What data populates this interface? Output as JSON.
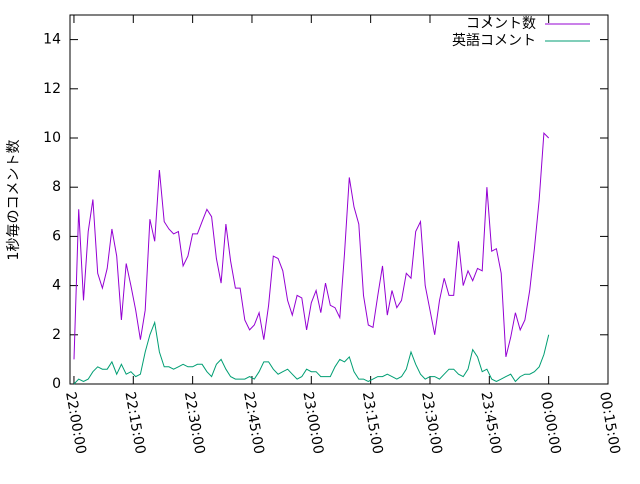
{
  "chart_data": {
    "type": "line",
    "y_label": "1秒毎のコメント数",
    "legend": "top-right",
    "x": [
      0,
      1.2,
      2.4,
      3.6,
      4.8,
      6,
      7.2,
      8.4,
      9.6,
      10.8,
      12,
      13.2,
      14.4,
      15.6,
      16.8,
      18,
      19.2,
      20.4,
      21.6,
      22.8,
      24,
      25.2,
      26.4,
      27.6,
      28.8,
      30,
      31.2,
      32.4,
      33.6,
      34.8,
      36,
      37.2,
      38.4,
      39.6,
      40.8,
      42,
      43.2,
      44.4,
      45.6,
      46.8,
      48,
      49.2,
      50.4,
      51.6,
      52.8,
      54,
      55.2,
      56.4,
      57.6,
      58.8,
      60,
      61.2,
      62.4,
      63.6,
      64.8,
      66,
      67.2,
      68.4,
      69.6,
      70.8,
      72,
      73.2,
      74.4,
      75.6,
      76.8,
      78,
      79.2,
      80.4,
      81.6,
      82.8,
      84,
      85.2,
      86.4,
      87.6,
      88.8,
      90,
      91.2,
      92.4,
      93.6,
      94.8,
      96,
      97.2,
      98.4,
      99.6,
      100.8,
      102,
      103.2,
      104.4,
      105.6,
      106.8,
      108,
      109.2,
      110.4,
      111.6,
      112.8,
      114,
      115.2,
      116.4,
      117.6,
      118.8,
      120
    ],
    "series": [
      {
        "name": "コメント数",
        "color": "#9400d3",
        "values": [
          1.0,
          7.1,
          3.4,
          6.2,
          7.5,
          4.5,
          3.9,
          4.7,
          6.3,
          5.2,
          2.6,
          4.9,
          4.0,
          3.0,
          1.8,
          3.0,
          6.7,
          5.8,
          8.7,
          6.6,
          6.3,
          6.1,
          6.2,
          4.8,
          5.2,
          6.1,
          6.1,
          6.6,
          7.1,
          6.8,
          5.1,
          4.1,
          6.5,
          5.0,
          3.9,
          3.9,
          2.6,
          2.2,
          2.4,
          2.9,
          1.8,
          3.2,
          5.2,
          5.1,
          4.6,
          3.4,
          2.8,
          3.6,
          3.5,
          2.2,
          3.3,
          3.8,
          2.9,
          4.1,
          3.2,
          3.1,
          2.7,
          5.3,
          8.4,
          7.2,
          6.5,
          3.6,
          2.4,
          2.3,
          3.6,
          4.8,
          2.8,
          3.8,
          3.1,
          3.4,
          4.5,
          4.3,
          6.2,
          6.6,
          4.0,
          3.0,
          2.0,
          3.4,
          4.3,
          3.6,
          3.6,
          5.8,
          4.0,
          4.6,
          4.2,
          4.7,
          4.6,
          8.0,
          5.4,
          5.5,
          4.5,
          1.1,
          1.9,
          2.9,
          2.2,
          2.6,
          3.8,
          5.5,
          7.5,
          10.2,
          10.0
        ]
      },
      {
        "name": "英語コメント",
        "color": "#009e73",
        "values": [
          0,
          0.2,
          0.1,
          0.2,
          0.5,
          0.7,
          0.6,
          0.6,
          0.9,
          0.4,
          0.8,
          0.4,
          0.5,
          0.3,
          0.4,
          1.3,
          2.0,
          2.5,
          1.3,
          0.7,
          0.7,
          0.6,
          0.7,
          0.8,
          0.7,
          0.7,
          0.8,
          0.8,
          0.5,
          0.3,
          0.8,
          1.0,
          0.6,
          0.3,
          0.2,
          0.2,
          0.2,
          0.3,
          0.2,
          0.5,
          0.9,
          0.9,
          0.6,
          0.4,
          0.5,
          0.6,
          0.4,
          0.2,
          0.3,
          0.6,
          0.5,
          0.5,
          0.3,
          0.3,
          0.3,
          0.7,
          1.0,
          0.9,
          1.1,
          0.5,
          0.2,
          0.2,
          0.1,
          0.2,
          0.3,
          0.3,
          0.4,
          0.3,
          0.2,
          0.3,
          0.6,
          1.3,
          0.8,
          0.4,
          0.2,
          0.3,
          0.3,
          0.2,
          0.4,
          0.6,
          0.6,
          0.4,
          0.3,
          0.6,
          1.4,
          1.1,
          0.5,
          0.6,
          0.2,
          0.1,
          0.2,
          0.3,
          0.4,
          0.1,
          0.3,
          0.4,
          0.4,
          0.5,
          0.7,
          1.2,
          2.0
        ]
      }
    ],
    "xlim": [
      -1,
      135
    ],
    "xticks": [
      {
        "value": 0,
        "label": "22:00:00"
      },
      {
        "value": 15,
        "label": "22:15:00"
      },
      {
        "value": 30,
        "label": "22:30:00"
      },
      {
        "value": 45,
        "label": "22:45:00"
      },
      {
        "value": 60,
        "label": "23:00:00"
      },
      {
        "value": 75,
        "label": "23:15:00"
      },
      {
        "value": 90,
        "label": "23:30:00"
      },
      {
        "value": 105,
        "label": "23:45:00"
      },
      {
        "value": 120,
        "label": "00:00:00"
      },
      {
        "value": 135,
        "label": "00:15:00"
      }
    ],
    "ylim": [
      0,
      15
    ],
    "yticks": [
      0,
      2,
      4,
      6,
      8,
      10,
      12,
      14
    ]
  }
}
